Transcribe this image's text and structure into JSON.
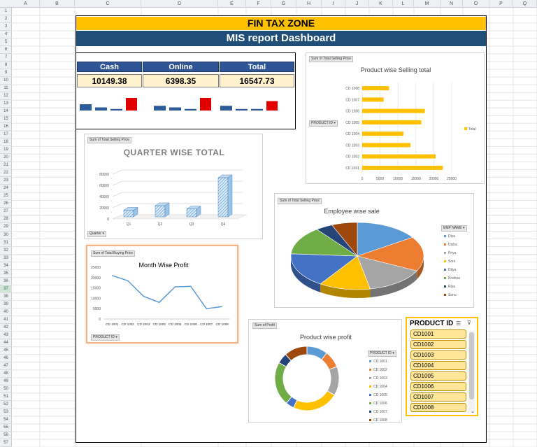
{
  "columns": [
    "A",
    "B",
    "C",
    "D",
    "E",
    "F",
    "G",
    "H",
    "I",
    "J",
    "K",
    "L",
    "M",
    "N",
    "O",
    "P",
    "Q"
  ],
  "rows": [
    "1",
    "2",
    "3",
    "4",
    "5",
    "6",
    "7",
    "8",
    "9",
    "10",
    "11",
    "12",
    "13",
    "14",
    "15",
    "16",
    "17",
    "18",
    "19",
    "20",
    "21",
    "22",
    "23",
    "24",
    "25",
    "26",
    "27",
    "28",
    "29",
    "30",
    "31",
    "32",
    "33",
    "34",
    "35",
    "36",
    "37",
    "38",
    "39",
    "40",
    "41",
    "42",
    "43",
    "44",
    "45",
    "46",
    "47",
    "48",
    "49",
    "50",
    "51",
    "52",
    "53",
    "54",
    "55",
    "56",
    "57"
  ],
  "selected_row": "37",
  "banner": {
    "title": "FIN TAX ZONE",
    "subtitle": "MIS report Dashboard"
  },
  "kpi": {
    "headers": [
      "Cash",
      "Online",
      "Total"
    ],
    "values": [
      "10149.38",
      "6398.35",
      "16547.73"
    ],
    "colors": {
      "header": "#2f5597",
      "value_bg": "#fff2cc",
      "bar_blue": "#2e5b9a",
      "bar_red": "#e00000"
    }
  },
  "slicer": {
    "title": "PRODUCT ID",
    "items": [
      "CD1001",
      "CD1002",
      "CD1003",
      "CD1004",
      "CD1005",
      "CD1006",
      "CD1007",
      "CD1008"
    ]
  },
  "chart_data": [
    {
      "id": "product-selling",
      "type": "bar",
      "orientation": "horizontal",
      "title": "Product wise Selling total",
      "field_button": "Sum of Total Selling Price",
      "filter_button": "PRODUCT ID",
      "categories": [
        "CD 1001",
        "CD 1002",
        "CD 1003",
        "CD 1004",
        "CD 1005",
        "CD 1006",
        "CD 1007",
        "CD 1008"
      ],
      "series": [
        {
          "name": "Total",
          "values": [
            22500,
            20500,
            13500,
            11500,
            16500,
            17500,
            6000,
            7500
          ]
        }
      ],
      "xlim": [
        0,
        25000
      ],
      "xticks": [
        "0",
        "5000",
        "10000",
        "15000",
        "20000",
        "25000"
      ],
      "color": "#ffc000"
    },
    {
      "id": "quarter-total",
      "type": "bar",
      "style": "3d",
      "title": "QUARTER WISE TOTAL",
      "field_button": "Sum of Total Selling Price",
      "filter_button": "Quarter",
      "categories": [
        "Q1",
        "Q2",
        "Q3",
        "Q4"
      ],
      "values": [
        12000,
        20000,
        14000,
        70000
      ],
      "ylim": [
        0,
        80000
      ],
      "yticks": [
        "0",
        "20000",
        "40000",
        "60000",
        "80000"
      ],
      "color": "#5b9bd5"
    },
    {
      "id": "employee-sale",
      "type": "pie",
      "style": "3d",
      "title": "Employee wise sale",
      "field_button": "Sum of Total Selling Price",
      "legend_title": "EMP NAME",
      "labels": [
        "Diya",
        "Disha",
        "Priya",
        "Soni",
        "Ditya",
        "Krishna",
        "Riya",
        "Sonu"
      ],
      "values": [
        15,
        16,
        14,
        12,
        16,
        13,
        4,
        6
      ],
      "colors": [
        "#5b9bd5",
        "#ed7d31",
        "#a5a5a5",
        "#ffc000",
        "#4472c4",
        "#70ad47",
        "#264478",
        "#9e480e"
      ]
    },
    {
      "id": "month-profit",
      "type": "line",
      "title": "Month Wise Profit",
      "field_button": "Sum of Total Buying Price",
      "filter_button": "PRODUCT ID",
      "categories": [
        "CD 1001",
        "CD 1002",
        "CD 1003",
        "CD 1004",
        "CD 1005",
        "CD 1006",
        "CD 1007",
        "CD 1008"
      ],
      "values": [
        21000,
        18500,
        11000,
        8000,
        15500,
        15800,
        5000,
        6000
      ],
      "ylim": [
        0,
        25000
      ],
      "yticks": [
        "0",
        "5000",
        "10000",
        "15000",
        "20000",
        "25000"
      ],
      "color": "#5b9bd5"
    },
    {
      "id": "product-profit",
      "type": "pie",
      "style": "doughnut",
      "title": "Product wise profit",
      "field_button": "Sum of Profit",
      "legend_title": "PRODUCT ID",
      "labels": [
        "CD 1001",
        "CD 1002",
        "CD 1003",
        "CD 1004",
        "CD 1005",
        "CD 1006",
        "CD 1007",
        "CD 1008"
      ],
      "values": [
        10,
        8,
        14,
        22,
        4,
        21,
        5,
        11
      ],
      "colors": [
        "#5b9bd5",
        "#ed7d31",
        "#a5a5a5",
        "#ffc000",
        "#4472c4",
        "#70ad47",
        "#264478",
        "#9e480e"
      ]
    }
  ],
  "kpi_mini_bars": [
    {
      "values": [
        4,
        2,
        1,
        8
      ],
      "colors": [
        "blue",
        "blue",
        "blue",
        "red"
      ]
    },
    {
      "values": [
        3,
        2,
        1,
        8
      ],
      "colors": [
        "blue",
        "blue",
        "blue",
        "red"
      ]
    },
    {
      "values": [
        3,
        1,
        1,
        6
      ],
      "colors": [
        "blue",
        "blue",
        "blue",
        "red"
      ]
    }
  ]
}
